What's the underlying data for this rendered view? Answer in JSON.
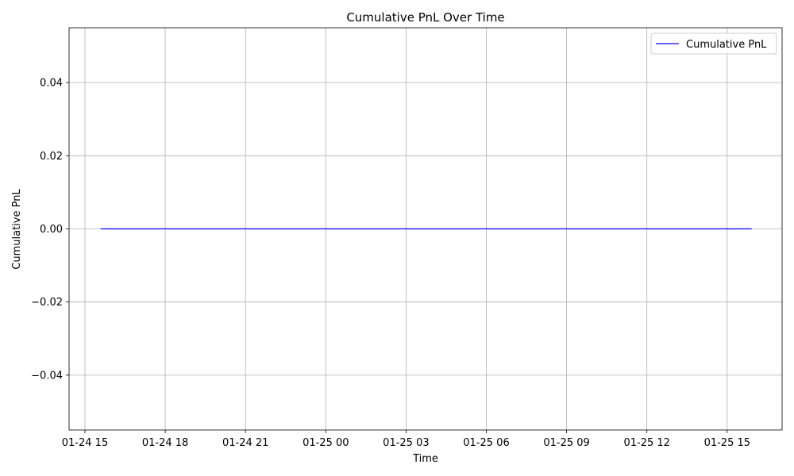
{
  "chart_data": {
    "type": "line",
    "title": "Cumulative PnL Over Time",
    "xlabel": "Time",
    "ylabel": "Cumulative PnL",
    "grid": true,
    "legend_position": "top-right",
    "x_ticks": [
      "01-24 15",
      "01-24 18",
      "01-24 21",
      "01-25 00",
      "01-25 03",
      "01-25 06",
      "01-25 09",
      "01-25 12",
      "01-25 15"
    ],
    "y_ticks": [
      "0.04",
      "0.02",
      "0.00",
      "−0.02",
      "−0.04"
    ],
    "ylim": [
      -0.055,
      0.055
    ],
    "series": [
      {
        "name": "Cumulative PnL",
        "color": "#0000ff",
        "x": [
          "2024-01-24 15:35",
          "2024-01-25 15:55"
        ],
        "y": [
          0.0,
          0.0
        ]
      }
    ]
  }
}
